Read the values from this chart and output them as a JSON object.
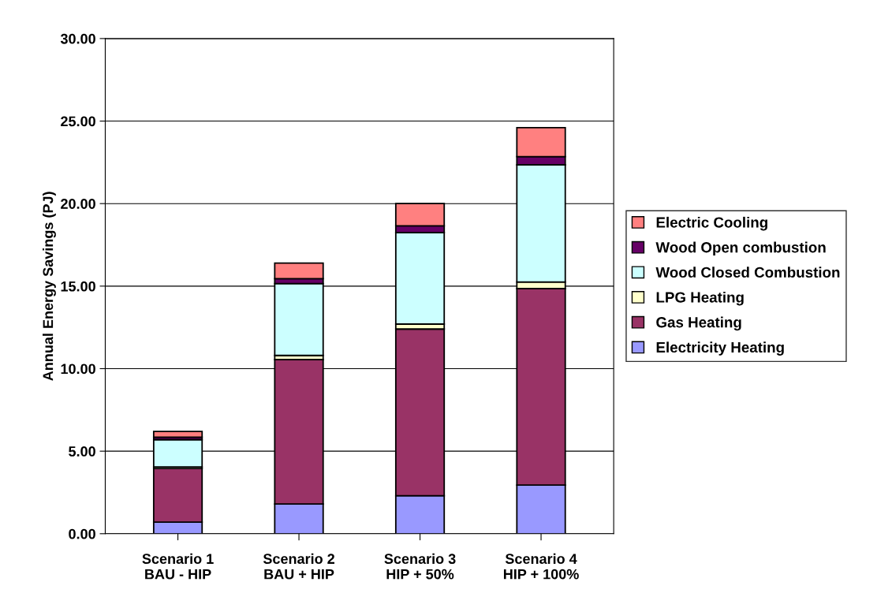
{
  "chart_data": {
    "type": "bar",
    "stacked": true,
    "ylabel": "Annual Energy Savings (PJ)",
    "categories": [
      "Scenario 1\nBAU - HIP",
      "Scenario 2\nBAU + HIP",
      "Scenario 3\nHIP + 50%",
      "Scenario 4\nHIP + 100%"
    ],
    "series": [
      {
        "name": "Electricity Heating",
        "color": "#9999ff",
        "values": [
          0.7,
          1.8,
          2.3,
          2.95
        ]
      },
      {
        "name": "Gas Heating",
        "color": "#993366",
        "values": [
          3.25,
          8.75,
          10.1,
          11.9
        ]
      },
      {
        "name": "LPG Heating",
        "color": "#ffffcc",
        "values": [
          0.1,
          0.25,
          0.3,
          0.4
        ]
      },
      {
        "name": "Wood Closed Combustion",
        "color": "#ccffff",
        "values": [
          1.65,
          4.35,
          5.55,
          7.1
        ]
      },
      {
        "name": "Wood Open combustion",
        "color": "#660066",
        "values": [
          0.15,
          0.3,
          0.4,
          0.5
        ]
      },
      {
        "name": "Electric Cooling",
        "color": "#ff8080",
        "values": [
          0.35,
          0.95,
          1.35,
          1.75
        ]
      }
    ],
    "ylim": [
      0,
      30
    ],
    "yticks": [
      {
        "value": 0,
        "label": "0.00"
      },
      {
        "value": 5,
        "label": "5.00"
      },
      {
        "value": 10,
        "label": "10.00"
      },
      {
        "value": 15,
        "label": "15.00"
      },
      {
        "value": 20,
        "label": "20.00"
      },
      {
        "value": 25,
        "label": "25.00"
      },
      {
        "value": 30,
        "label": "30.00"
      }
    ],
    "grid": "y",
    "legend": "right"
  }
}
